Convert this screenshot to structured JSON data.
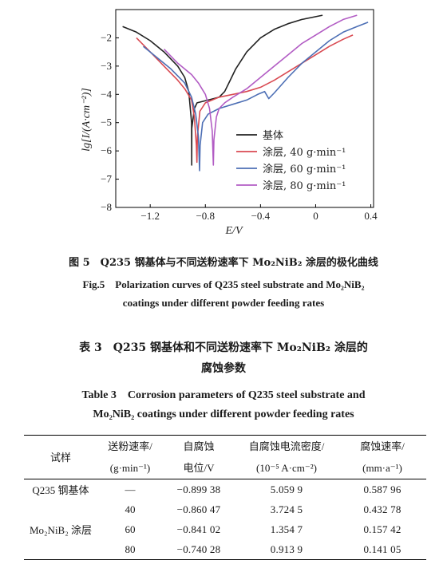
{
  "chart_data": {
    "type": "line",
    "xlabel": "E/V",
    "ylabel": "lg[I/(A·cm⁻²)]",
    "xlim": [
      -1.45,
      0.42
    ],
    "ylim": [
      -8,
      -1
    ],
    "xticks": [
      "-1.2",
      "-0.8",
      "-0.4",
      "0",
      "0.4"
    ],
    "yticks": [
      "-2",
      "-3",
      "-4",
      "-5",
      "-6",
      "-7",
      "-8"
    ],
    "legend_position": "lower-right",
    "series": [
      {
        "name": "基体",
        "color": "#222222",
        "x": [
          -1.4,
          -1.3,
          -1.2,
          -1.1,
          -1.0,
          -0.95,
          -0.92,
          -0.9,
          -0.899,
          -0.898,
          -0.88,
          -0.86,
          -0.82,
          -0.78,
          -0.74,
          -0.7,
          -0.66,
          -0.62,
          -0.58,
          -0.5,
          -0.4,
          -0.3,
          -0.2,
          -0.1,
          0.0,
          0.05
        ],
        "y": [
          -1.6,
          -1.8,
          -2.1,
          -2.5,
          -3.0,
          -3.4,
          -3.9,
          -5.0,
          -6.5,
          -5.2,
          -4.5,
          -4.3,
          -4.25,
          -4.2,
          -4.15,
          -4.1,
          -3.9,
          -3.5,
          -3.1,
          -2.5,
          -2.0,
          -1.7,
          -1.5,
          -1.35,
          -1.25,
          -1.2
        ]
      },
      {
        "name": "涂层, 40 g·min⁻¹",
        "color": "#d94a52",
        "x": [
          -1.3,
          -1.2,
          -1.1,
          -1.0,
          -0.95,
          -0.9,
          -0.88,
          -0.865,
          -0.861,
          -0.858,
          -0.84,
          -0.8,
          -0.7,
          -0.6,
          -0.5,
          -0.4,
          -0.3,
          -0.2,
          -0.1,
          0.0,
          0.1,
          0.2,
          0.27
        ],
        "y": [
          -2.0,
          -2.5,
          -3.0,
          -3.5,
          -3.8,
          -4.2,
          -4.8,
          -5.8,
          -6.4,
          -5.5,
          -4.6,
          -4.3,
          -4.1,
          -4.0,
          -3.9,
          -3.75,
          -3.5,
          -3.2,
          -2.9,
          -2.6,
          -2.3,
          -2.05,
          -1.9
        ]
      },
      {
        "name": "涂层, 60 g·min⁻¹",
        "color": "#4d6fb5",
        "x": [
          -1.25,
          -1.15,
          -1.05,
          -0.95,
          -0.9,
          -0.87,
          -0.85,
          -0.842,
          -0.838,
          -0.82,
          -0.78,
          -0.7,
          -0.6,
          -0.5,
          -0.42,
          -0.37,
          -0.34,
          -0.3,
          -0.2,
          -0.1,
          0.0,
          0.1,
          0.2,
          0.3,
          0.38
        ],
        "y": [
          -2.3,
          -2.7,
          -3.1,
          -3.6,
          -4.1,
          -4.7,
          -5.5,
          -6.7,
          -5.8,
          -5.0,
          -4.7,
          -4.5,
          -4.35,
          -4.2,
          -4.0,
          -3.9,
          -4.15,
          -3.95,
          -3.4,
          -2.9,
          -2.5,
          -2.1,
          -1.8,
          -1.6,
          -1.45
        ]
      },
      {
        "name": "涂层, 80 g·min⁻¹",
        "color": "#b25cc4",
        "x": [
          -1.1,
          -1.0,
          -0.9,
          -0.85,
          -0.8,
          -0.77,
          -0.75,
          -0.742,
          -0.738,
          -0.72,
          -0.7,
          -0.66,
          -0.6,
          -0.5,
          -0.4,
          -0.3,
          -0.2,
          -0.1,
          0.0,
          0.1,
          0.2,
          0.3
        ],
        "y": [
          -2.4,
          -2.9,
          -3.3,
          -3.6,
          -4.0,
          -4.5,
          -5.3,
          -6.5,
          -5.6,
          -4.8,
          -4.5,
          -4.3,
          -4.1,
          -3.8,
          -3.4,
          -3.0,
          -2.6,
          -2.2,
          -1.9,
          -1.6,
          -1.35,
          -1.2
        ]
      }
    ]
  },
  "captions": {
    "fig_cn": "图 5　Q235 钢基体与不同送粉速率下 Mo₂NiB₂ 涂层的极化曲线",
    "fig_en_1": "Fig.5　Polarization curves of Q235 steel substrate and Mo₂NiB₂",
    "fig_en_2": "coatings under different powder feeding rates",
    "table_cn_1": "表 3　Q235 钢基体和不同送粉速率下 Mo₂NiB₂ 涂层的",
    "table_cn_2": "腐蚀参数",
    "table_en_1": "Table 3　Corrosion parameters of Q235 steel substrate and",
    "table_en_2": "Mo₂NiB₂ coatings under different powder feeding rates"
  },
  "table": {
    "headers": {
      "sample": "试样",
      "feed_1": "送粉速率/",
      "feed_2": "(g·min⁻¹)",
      "potential_1": "自腐蚀",
      "potential_2": "电位/V",
      "current_1": "自腐蚀电流密度/",
      "current_2": "(10⁻⁵ A·cm⁻²)",
      "rate_1": "腐蚀速率/",
      "rate_2": "(mm·a⁻¹)"
    },
    "substrate_label": "Q235 钢基体",
    "coating_label": "Mo₂NiB₂ 涂层",
    "rows": [
      {
        "feed": "—",
        "potential": "−0.899 38",
        "current": "5.059 9",
        "rate": "0.587 96"
      },
      {
        "feed": "40",
        "potential": "−0.860 47",
        "current": "3.724 5",
        "rate": "0.432 78"
      },
      {
        "feed": "60",
        "potential": "−0.841 02",
        "current": "1.354 7",
        "rate": "0.157 42"
      },
      {
        "feed": "80",
        "potential": "−0.740 28",
        "current": "0.913 9",
        "rate": "0.141 05"
      }
    ]
  }
}
